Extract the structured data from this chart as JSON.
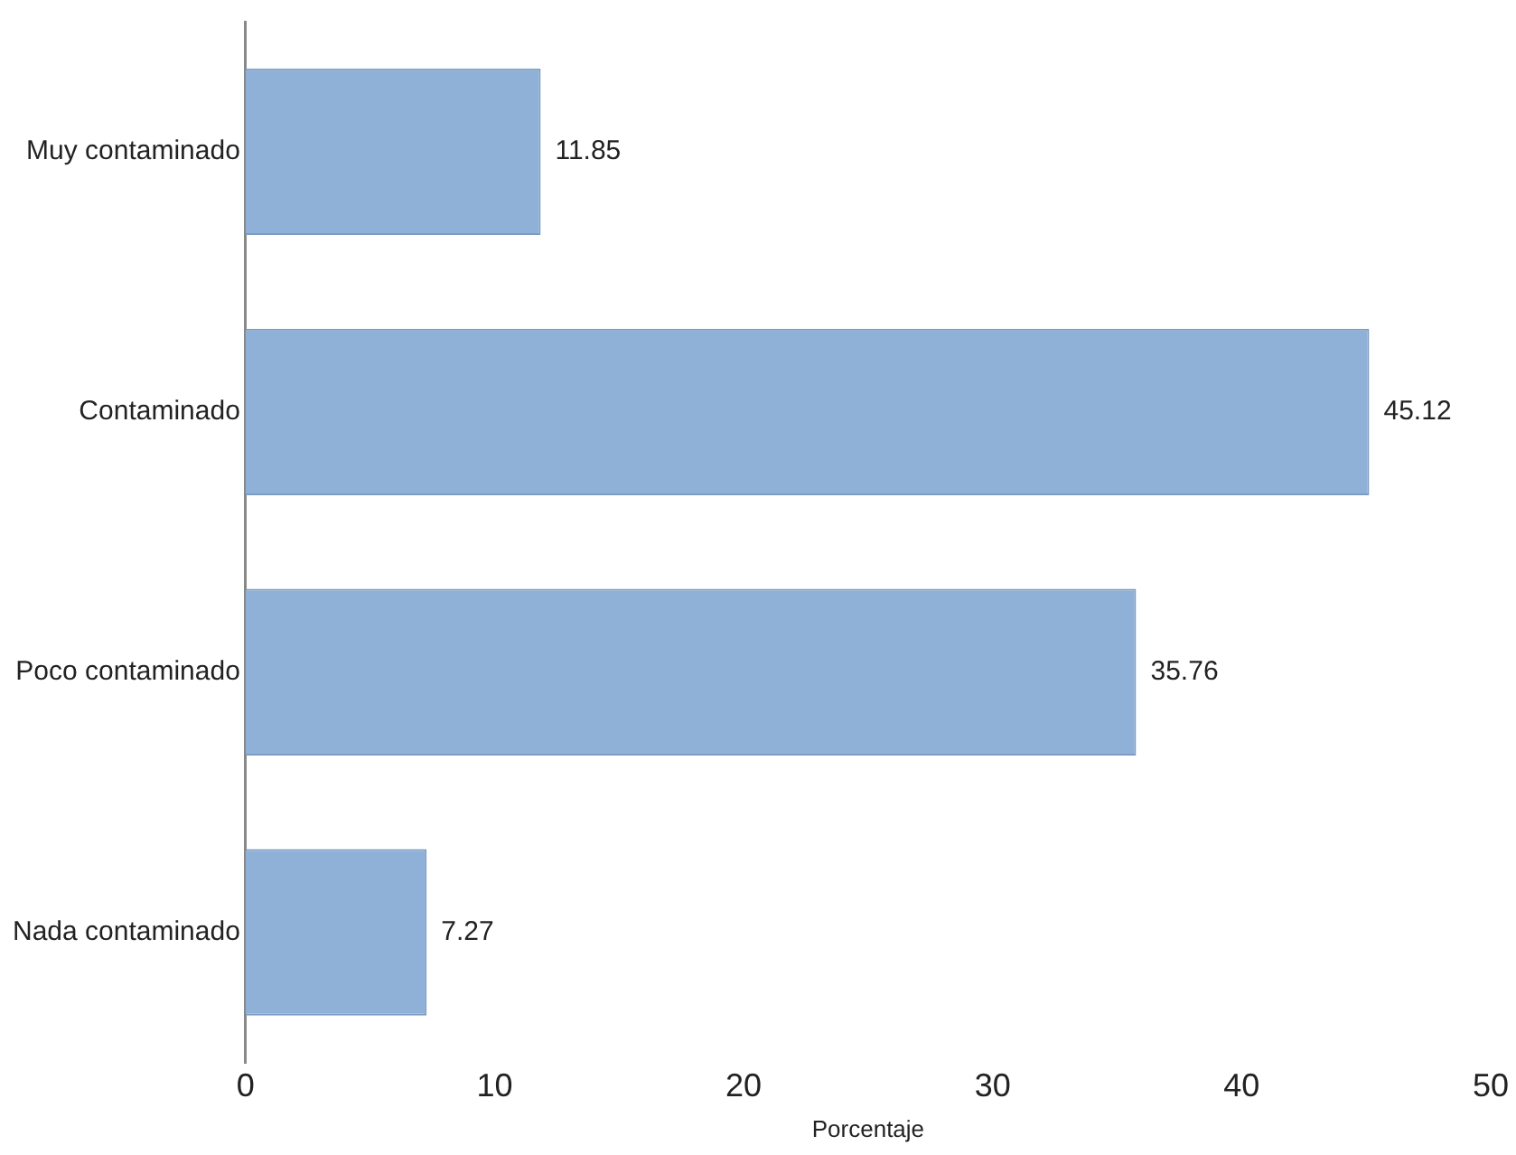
{
  "chart_data": {
    "type": "bar",
    "orientation": "horizontal",
    "xlabel": "Porcentaje",
    "categories": [
      "Muy contaminado",
      "Contaminado",
      "Poco contaminado",
      "Nada contaminado"
    ],
    "values": [
      11.85,
      45.12,
      35.76,
      7.27
    ],
    "color": "#8fb1d8",
    "xlim": [
      0,
      50
    ],
    "xticks": [
      0,
      10,
      20,
      30,
      40,
      50
    ],
    "grid": false,
    "legend": false,
    "data_labels": true
  }
}
